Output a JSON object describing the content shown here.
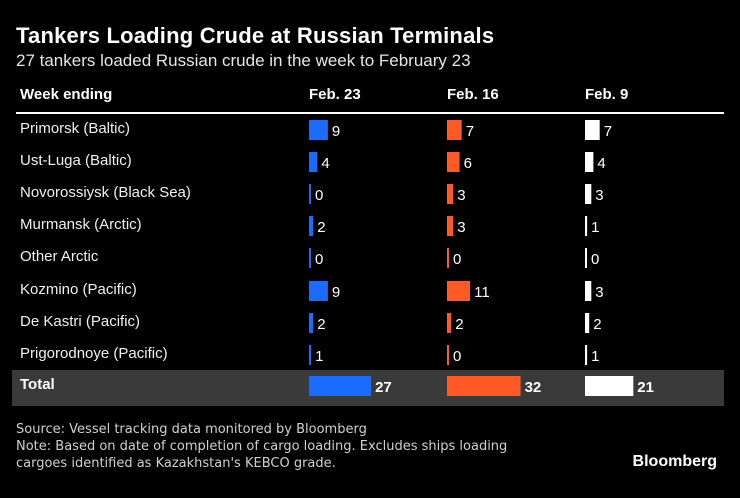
{
  "title": "Tankers Loading Crude at Russian Terminals",
  "subtitle": "27 tankers loaded Russian crude in the week to February 23",
  "source": "Source: Vessel tracking data monitored by Bloomberg",
  "note_line1": "Note: Based on date of completion of cargo loading. Excludes ships loading",
  "note_line2": "cargoes identified as Kazakhstan's KEBCO grade.",
  "logo": "Bloomberg",
  "colors": {
    "feb23": "#1a6cff",
    "feb16": "#ff5a23",
    "feb9": "#ffffff",
    "total_band": "#3a3a3a"
  },
  "chart_data": {
    "type": "table",
    "row_header": "Week ending",
    "series": [
      {
        "name": "Feb. 23",
        "values": [
          9,
          4,
          0,
          2,
          0,
          9,
          2,
          1
        ],
        "total": 27
      },
      {
        "name": "Feb. 16",
        "values": [
          7,
          6,
          3,
          3,
          0,
          11,
          2,
          0
        ],
        "total": 32
      },
      {
        "name": "Feb. 9",
        "values": [
          7,
          4,
          3,
          1,
          0,
          3,
          2,
          1
        ],
        "total": 21
      }
    ],
    "categories": [
      "Primorsk (Baltic)",
      "Ust-Luga (Baltic)",
      "Novorossiysk (Black Sea)",
      "Murmansk (Arctic)",
      "Other Arctic",
      "Kozmino (Pacific)",
      "De Kastri (Pacific)",
      "Prigorodnoye (Pacific)"
    ],
    "total_label": "Total"
  }
}
